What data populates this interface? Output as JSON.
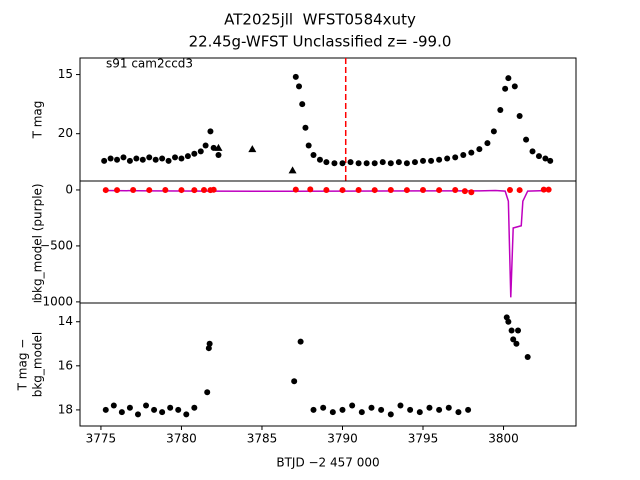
{
  "chart_data": [
    {
      "type": "scatter",
      "title": [
        "AT2025jll  WFST0584xuty",
        "22.45g-WFST Unclassified z= -99.0"
      ],
      "annotation": "s91 cam2ccd3",
      "ylabel": [
        "T mag"
      ],
      "xlim": [
        3773.7,
        3804.5
      ],
      "ylim": [
        24.0,
        13.6
      ],
      "yticks": [
        15,
        20
      ],
      "vline": {
        "x": 3790.2,
        "color": "#ff0000"
      },
      "series": [
        {
          "marker": "circle",
          "color": "#000000",
          "x": [
            3775.2,
            3775.6,
            3776.0,
            3776.4,
            3776.8,
            3777.2,
            3777.6,
            3778.0,
            3778.4,
            3778.8,
            3779.2,
            3779.6,
            3780.0,
            3780.4,
            3780.8,
            3781.2,
            3781.5,
            3781.8,
            3782.0,
            3782.3,
            3787.1,
            3787.3,
            3787.5,
            3787.7,
            3787.9,
            3788.2,
            3788.6,
            3789.0,
            3789.5,
            3790.0,
            3790.5,
            3791.0,
            3791.5,
            3792.0,
            3792.5,
            3793.0,
            3793.5,
            3794.0,
            3794.5,
            3795.0,
            3795.5,
            3796.0,
            3796.5,
            3797.0,
            3797.5,
            3798.0,
            3798.5,
            3799.0,
            3799.4,
            3799.8,
            3800.1,
            3800.3,
            3800.7,
            3801.0,
            3801.4,
            3801.8,
            3802.2,
            3802.6,
            3802.9
          ],
          "values": [
            22.3,
            22.1,
            22.2,
            22.0,
            22.3,
            22.1,
            22.2,
            22.0,
            22.2,
            22.1,
            22.3,
            22.0,
            22.1,
            21.9,
            21.7,
            21.5,
            21.0,
            19.8,
            21.2,
            21.8,
            15.2,
            16.0,
            17.5,
            19.5,
            21.0,
            21.8,
            22.2,
            22.4,
            22.5,
            22.5,
            22.4,
            22.5,
            22.5,
            22.5,
            22.4,
            22.5,
            22.4,
            22.5,
            22.4,
            22.3,
            22.3,
            22.2,
            22.1,
            22.0,
            21.8,
            21.6,
            21.3,
            20.8,
            19.8,
            18.0,
            16.2,
            15.3,
            16.0,
            18.5,
            20.5,
            21.5,
            21.9,
            22.1,
            22.3
          ]
        },
        {
          "marker": "triangle",
          "color": "#000000",
          "x": [
            3782.3,
            3784.4,
            3786.9
          ],
          "values": [
            21.2,
            21.3,
            23.1
          ]
        }
      ]
    },
    {
      "type": "line",
      "ylabel": [
        "bkg_model (purple)"
      ],
      "xlim": [
        3773.7,
        3804.5
      ],
      "ylim": [
        -1010,
        80
      ],
      "yticks": [
        0,
        {
          "value": -500,
          "label": "−500"
        },
        {
          "value": -1000,
          "label": "−1000"
        }
      ],
      "series": [
        {
          "style": "line",
          "color": "#bf00bf",
          "x": [
            3775.2,
            3778.0,
            3781.8,
            3787.0,
            3790.0,
            3795.0,
            3798.5,
            3799.5,
            3800.1,
            3800.3,
            3800.45,
            3800.6,
            3801.1,
            3801.2,
            3801.5,
            3802.8
          ],
          "values": [
            -5,
            -8,
            -10,
            -12,
            -10,
            -8,
            -8,
            -5,
            -10,
            -100,
            -960,
            -340,
            -320,
            -100,
            -10,
            -5
          ]
        },
        {
          "style": "points",
          "color": "#ff0000",
          "x": [
            3775.3,
            3776,
            3777,
            3778,
            3779,
            3780,
            3780.8,
            3781.4,
            3781.8,
            3782.0,
            3787.1,
            3788,
            3789,
            3790,
            3791,
            3792,
            3793,
            3794,
            3795,
            3796,
            3797,
            3797.6,
            3798,
            3800.4,
            3801,
            3802.5,
            3802.8
          ],
          "values": [
            -1,
            -1,
            0,
            -1,
            0,
            -1,
            -2,
            0,
            -2,
            2,
            3,
            5,
            0,
            -1,
            0,
            -1,
            0,
            -1,
            0,
            -1,
            0,
            -10,
            -20,
            0,
            -1,
            3,
            3
          ]
        }
      ]
    },
    {
      "type": "scatter",
      "ylabel": [
        "T mag −",
        "bkg_model"
      ],
      "xlabel": "BTJD −2 457 000",
      "xlim": [
        3773.7,
        3804.5
      ],
      "xticks": [
        3775,
        3780,
        3785,
        3790,
        3795,
        3800
      ],
      "ylim": [
        18.73,
        13.15
      ],
      "yticks": [
        14,
        16,
        18
      ],
      "series": [
        {
          "marker": "circle",
          "color": "#000000",
          "x": [
            3775.3,
            3775.8,
            3776.3,
            3776.8,
            3777.3,
            3777.8,
            3778.3,
            3778.8,
            3779.3,
            3779.8,
            3780.3,
            3780.8,
            3781.6,
            3781.7,
            3781.75,
            3787.0,
            3787.4,
            3788.2,
            3788.8,
            3789.4,
            3790,
            3790.6,
            3791.2,
            3791.8,
            3792.4,
            3793,
            3793.6,
            3794.2,
            3794.8,
            3795.4,
            3796,
            3796.6,
            3797.2,
            3797.8,
            3800.2,
            3800.3,
            3800.5,
            3800.6,
            3800.8,
            3800.9,
            3801.5
          ],
          "values": [
            18.0,
            17.8,
            18.1,
            17.9,
            18.2,
            17.8,
            18.0,
            18.1,
            17.9,
            18.0,
            18.2,
            17.9,
            17.2,
            15.2,
            15.0,
            16.7,
            14.9,
            18.0,
            17.9,
            18.1,
            18.0,
            17.8,
            18.1,
            17.9,
            18.0,
            18.2,
            17.8,
            18.0,
            18.1,
            17.9,
            18.0,
            17.9,
            18.1,
            18.0,
            13.8,
            14.0,
            14.4,
            14.8,
            15.0,
            14.4,
            15.6
          ]
        }
      ]
    }
  ]
}
